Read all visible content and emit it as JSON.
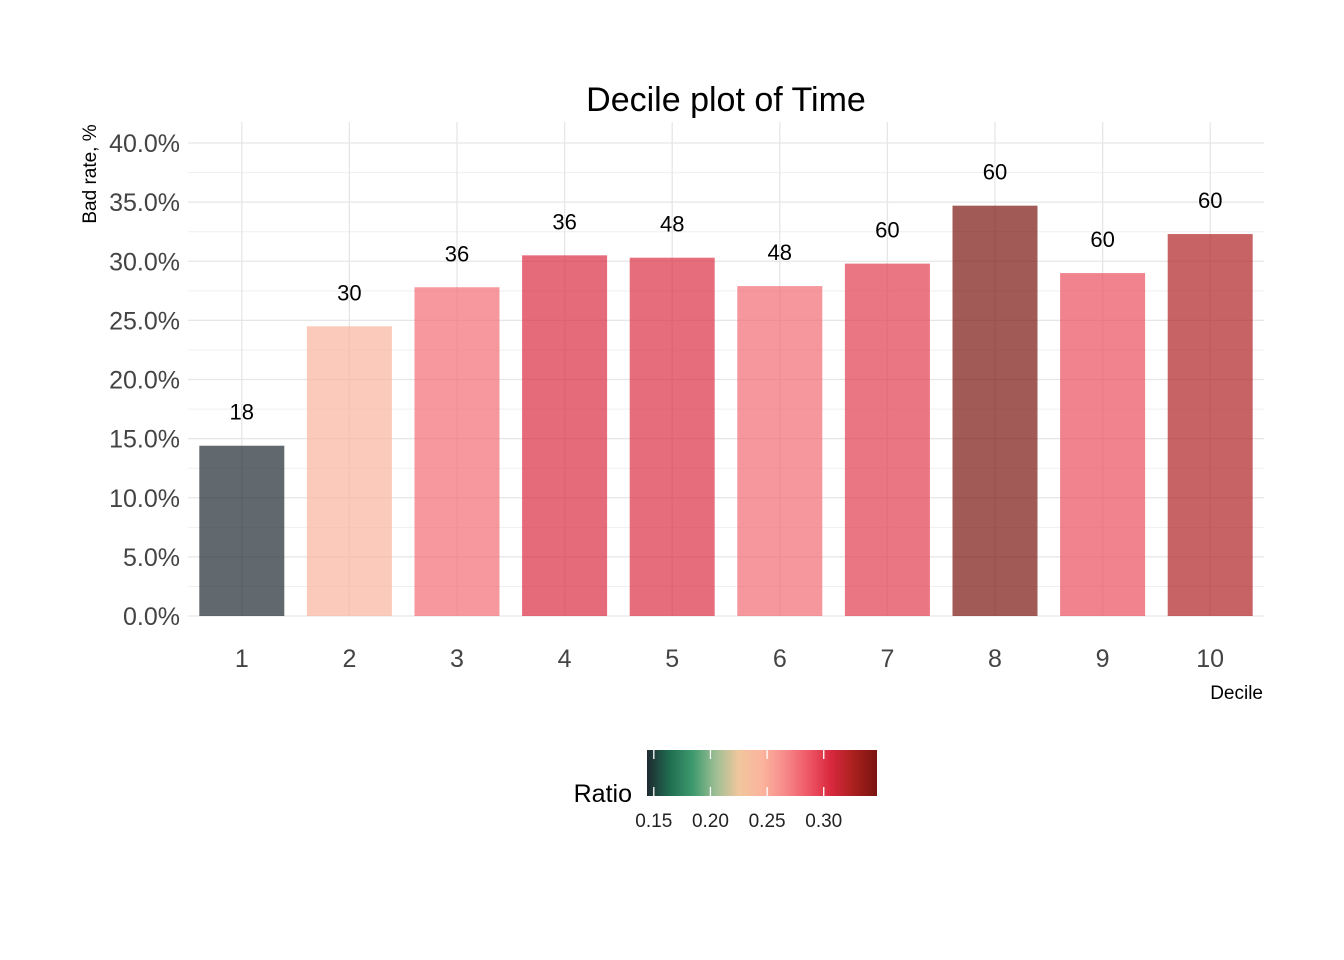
{
  "chart_data": {
    "type": "bar",
    "title": "Decile plot of Time",
    "xlabel": "Decile",
    "ylabel": "Bad rate, %",
    "categories": [
      "1",
      "2",
      "3",
      "4",
      "5",
      "6",
      "7",
      "8",
      "9",
      "10"
    ],
    "values": [
      0.144,
      0.245,
      0.278,
      0.305,
      0.303,
      0.279,
      0.298,
      0.347,
      0.29,
      0.323
    ],
    "data_labels": [
      "18",
      "30",
      "36",
      "36",
      "48",
      "48",
      "60",
      "60",
      "60",
      "60"
    ],
    "ylim": [
      0,
      0.4
    ],
    "y_ticks": [
      0,
      0.05,
      0.1,
      0.15,
      0.2,
      0.25,
      0.3,
      0.35,
      0.4
    ],
    "y_tick_labels": [
      "0.0%",
      "5.0%",
      "10.0%",
      "15.0%",
      "20.0%",
      "25.0%",
      "30.0%",
      "35.0%",
      "40.0%"
    ],
    "grid": true,
    "legend": {
      "title": "Ratio",
      "position": "bottom",
      "type": "colorbar",
      "range": [
        0.144,
        0.347
      ],
      "ticks": [
        0.15,
        0.2,
        0.25,
        0.3
      ],
      "tick_labels": [
        "0.15",
        "0.20",
        "0.25",
        "0.30"
      ],
      "colors": [
        "#1e2a30",
        "#1f6e50",
        "#3f9a6e",
        "#9fbf94",
        "#f1c69d",
        "#fbb49d",
        "#f78a8a",
        "#ef5866",
        "#d8283e",
        "#a8201e",
        "#7a1410"
      ]
    },
    "bar_opacity": 0.7
  }
}
